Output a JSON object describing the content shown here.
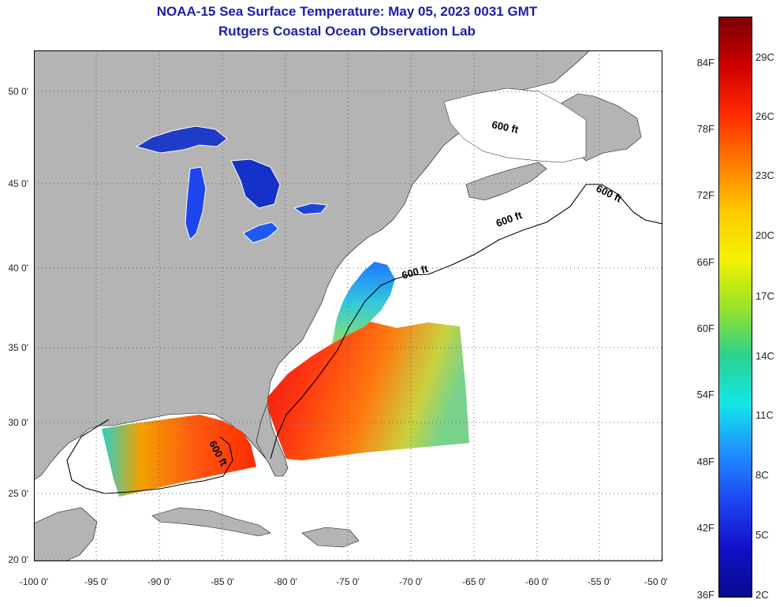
{
  "title": "NOAA-15 Sea Surface Temperature:  May 05, 2023 0031 GMT",
  "subtitle": "Rutgers Coastal Ocean Observation Lab",
  "lat_labels": [
    "50 0'",
    "45 0'",
    "40 0'",
    "35 0'",
    "30 0'",
    "25 0'",
    "20 0'"
  ],
  "lon_labels": [
    "-100 0'",
    "-95 0'",
    "-90 0'",
    "-85 0'",
    "-80 0'",
    "-75 0'",
    "-70 0'",
    "-65 0'",
    "-60 0'",
    "-55 0'",
    "-50 0'"
  ],
  "contour_label": "600 ft",
  "colorbar": {
    "fahrenheit": [
      "84F",
      "78F",
      "72F",
      "66F",
      "60F",
      "54F",
      "48F",
      "42F",
      "36F"
    ],
    "celsius": [
      "29C",
      "26C",
      "23C",
      "20C",
      "17C",
      "14C",
      "11C",
      "8C",
      "5C",
      "2C"
    ],
    "colors": [
      "#7a0000",
      "#cc0000",
      "#ff2a00",
      "#ff7a00",
      "#ffc800",
      "#f2f200",
      "#9be22a",
      "#2ad28c",
      "#14e6e6",
      "#1e90ff",
      "#1e46f0",
      "#1010c8",
      "#0a0a8c"
    ]
  },
  "colors": {
    "land": "#b4b4b4",
    "ocean": "#ffffff",
    "title": "#1c1cb0",
    "grid": "#606060"
  }
}
